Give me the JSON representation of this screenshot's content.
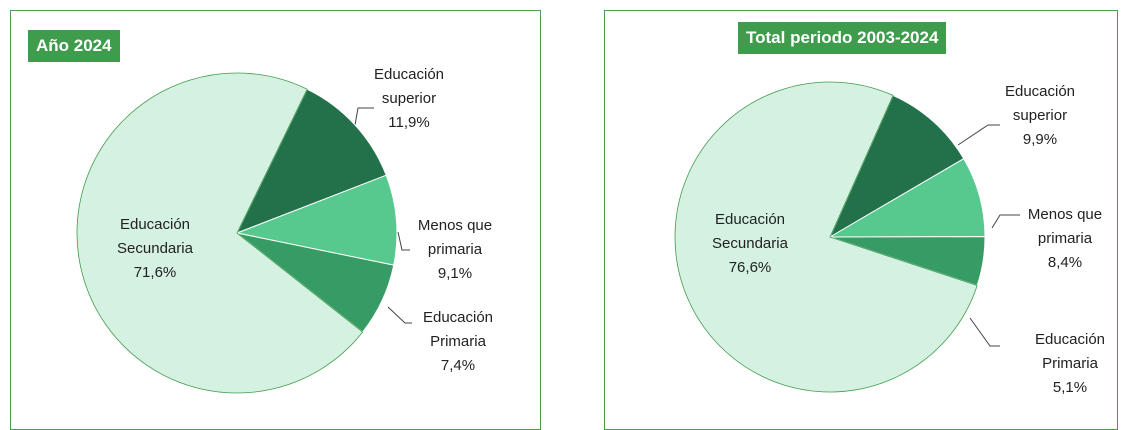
{
  "chart_data": [
    {
      "type": "pie",
      "title": "Año 2024",
      "categories": [
        "Educación superior",
        "Menos que primaria",
        "Educación Primaria",
        "Educación Secundaria"
      ],
      "values": [
        11.9,
        9.1,
        7.4,
        71.6
      ],
      "value_labels": [
        "11,9%",
        "9,1%",
        "7,4%",
        "71,6%"
      ],
      "colors": [
        "#23714a",
        "#57c98f",
        "#369b64",
        "#d4f1e1"
      ]
    },
    {
      "type": "pie",
      "title": "Total periodo 2003-2024",
      "categories": [
        "Educación superior",
        "Menos que primaria",
        "Educación Primaria",
        "Educación Secundaria"
      ],
      "values": [
        9.9,
        8.4,
        5.1,
        76.6
      ],
      "value_labels": [
        "9,9%",
        "8,4%",
        "5,1%",
        "76,6%"
      ],
      "colors": [
        "#23714a",
        "#57c98f",
        "#369b64",
        "#d4f1e1"
      ]
    }
  ]
}
